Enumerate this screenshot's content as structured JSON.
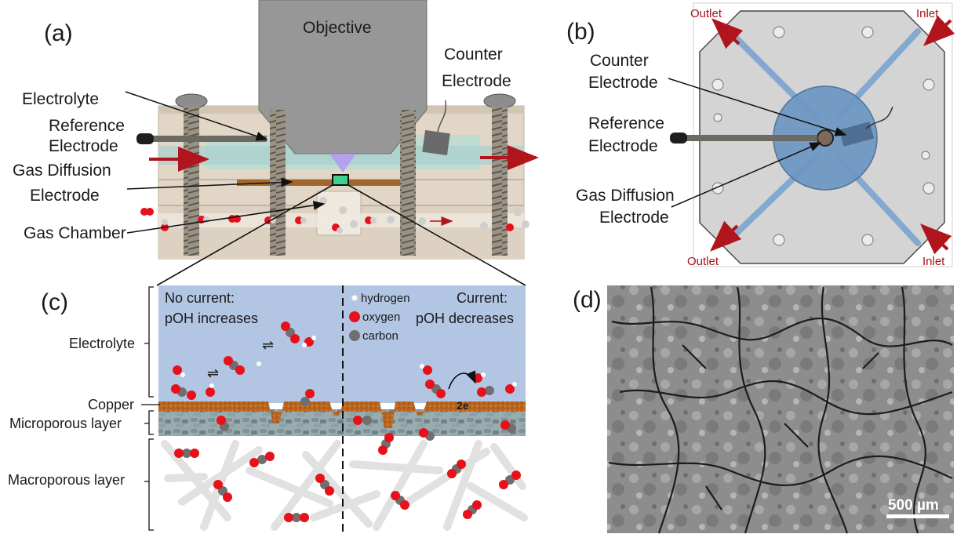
{
  "panel_a": {
    "letter": "(a)",
    "objective": "Objective",
    "counter_electrode": [
      "Counter",
      "Electrode"
    ],
    "electrolyte": "Electrolyte",
    "reference_electrode": [
      "Reference",
      "Electrode"
    ],
    "gas_diffusion_electrode": [
      "Gas Diffusion",
      "Electrode"
    ],
    "gas_chamber": "Gas Chamber"
  },
  "panel_b": {
    "letter": "(b)",
    "counter_electrode": [
      "Counter",
      "Electrode"
    ],
    "reference_electrode": [
      "Reference",
      "Electrode"
    ],
    "gas_diffusion_electrode": [
      "Gas Diffusion",
      "Electrode"
    ],
    "outlet_top": "Outlet",
    "inlet_top": "Inlet",
    "outlet_bottom": "Outlet",
    "inlet_bottom": "Inlet"
  },
  "panel_c": {
    "letter": "(c)",
    "left_state": [
      "No current:",
      "pOH increases"
    ],
    "right_state": [
      "Current:",
      "pOH decreases"
    ],
    "legend": [
      {
        "label": "hydrogen",
        "color": "#ffffff"
      },
      {
        "label": "oxygen",
        "color": "#e8101a"
      },
      {
        "label": "carbon",
        "color": "#6f6f6f"
      }
    ],
    "layers": {
      "electrolyte": "Electrolyte",
      "copper": "Copper",
      "microporous": "Microporous layer",
      "macroporous": "Macroporous layer"
    },
    "electrons": "2e"
  },
  "panel_d": {
    "letter": "(d)",
    "scale_bar": "500 µm"
  },
  "colors": {
    "arrow_red": "#b0141c",
    "electrolyte_blue": "#b2c6e4",
    "copper": "#b8651f",
    "micro_layer": "#8fa3a8",
    "fiber": "#e3e3e3",
    "sem_bg": "#8c8c8c"
  }
}
